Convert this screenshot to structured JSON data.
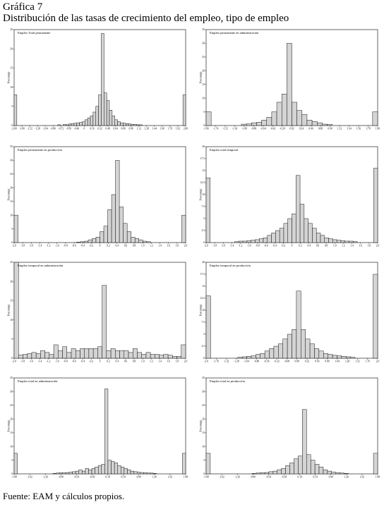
{
  "figure": {
    "label": "Gráfica 7",
    "title": "Distribución de las tasas de crecimiento del empleo, tipo de empleo",
    "source": "Fuente: EAM y cálculos propios."
  },
  "colors": {
    "bar_fill": "#d4d4d4",
    "bar_stroke": "#000000",
    "axis": "#000000"
  },
  "chart_data": [
    {
      "type": "bar",
      "title": "Empleo Total permanente",
      "ylabel": "Porcentaje",
      "ylim": [
        0,
        25
      ],
      "y_ticks": [
        0,
        5,
        10,
        15,
        20,
        25
      ],
      "x_tick_labels": [
        "-2.00",
        "-1.80",
        "-1.52",
        "-1.28",
        "-1.04",
        "-0.80",
        "-0.72",
        "-0.56",
        "-0.40",
        "0",
        "0.16",
        "0.32",
        "0.48",
        "0.64",
        "0.80",
        "0.96",
        "1.12",
        "1.28",
        "1.44",
        "1.60",
        "1.76",
        "1.92",
        "2.00"
      ],
      "values": [
        8,
        0,
        0,
        0,
        0,
        0,
        0,
        0,
        0,
        0,
        0,
        0,
        0,
        0,
        0,
        0,
        0.2,
        0,
        0.3,
        0.2,
        0.4,
        0.5,
        0.6,
        0.7,
        0.8,
        1.0,
        1.5,
        2.0,
        2.5,
        3.5,
        5.0,
        8.0,
        24.0,
        8.5,
        6.5,
        4.0,
        2.5,
        1.5,
        1.0,
        0.7,
        0.6,
        0.5,
        0.4,
        0.3,
        0.3,
        0.2,
        0.2,
        0,
        0,
        0,
        0,
        0,
        0,
        0,
        0,
        0,
        0,
        0,
        0,
        0,
        0,
        0,
        8
      ]
    },
    {
      "type": "bar",
      "title": "Empleo permanente en administración",
      "ylabel": "Porcentaje",
      "ylim": [
        0,
        35
      ],
      "y_ticks": [
        0,
        5,
        10,
        15,
        20,
        25,
        30,
        35
      ],
      "x_tick_labels": [
        "-1.96",
        "-1.74",
        "-1.52",
        "-1.30",
        "-1.08",
        "-0.86",
        "-0.64",
        "-0.42",
        "-0.20",
        "0.02",
        "0.24",
        "0.46",
        "0.68",
        "0.90",
        "1.12",
        "1.34",
        "1.56",
        "1.78",
        "1.96"
      ],
      "values": [
        5,
        0,
        0,
        0,
        0,
        0,
        0,
        0.5,
        0.6,
        1.0,
        1.2,
        2.0,
        3.0,
        5.0,
        8.5,
        11.5,
        30.0,
        8.5,
        5.5,
        4.0,
        2.0,
        1.5,
        1.0,
        0.5,
        0.4,
        0,
        0,
        0,
        0,
        0,
        0,
        0,
        0,
        5
      ]
    },
    {
      "type": "bar",
      "title": "Empleo permanente en producción",
      "ylabel": "Porcentaje",
      "ylim": [
        0,
        35
      ],
      "y_ticks": [
        0,
        5,
        10,
        15,
        20,
        25,
        30,
        35
      ],
      "x_tick_labels": [
        "-2.0",
        "-1.8",
        "-1.6",
        "-1.4",
        "-1.2",
        "-1.0",
        "-0.8",
        "-0.6",
        "-0.4",
        "-0.2",
        "0",
        "0.2",
        "0.4",
        "0.6",
        "0.8",
        "1.0",
        "1.2",
        "1.4",
        "1.6",
        "1.8",
        "2.0"
      ],
      "values": [
        10,
        0,
        0,
        0,
        0,
        0,
        0,
        0,
        0,
        0,
        0,
        0,
        0,
        0,
        0,
        0,
        0.2,
        0.3,
        0.5,
        1.0,
        1.5,
        2.0,
        4.0,
        6.0,
        12.0,
        17.5,
        30.0,
        13.0,
        7.0,
        4.0,
        2.0,
        1.5,
        1.0,
        0.5,
        0.3,
        0,
        0,
        0,
        0,
        0,
        0,
        0,
        0,
        10
      ]
    },
    {
      "type": "bar",
      "title": "Empleo total temporal",
      "ylabel": "Porcentaje",
      "ylim": [
        0,
        20
      ],
      "y_ticks": [
        0,
        2.5,
        5,
        7.5,
        10,
        12.5,
        15,
        17.5,
        20
      ],
      "x_tick_labels": [
        "-2.0",
        "-1.8",
        "-1.6",
        "-1.4",
        "-1.2",
        "-1.0",
        "-0.8",
        "-0.6",
        "-0.4",
        "-0.2",
        "0",
        "0.2",
        "0.4",
        "0.6",
        "0.8",
        "1.0",
        "1.2",
        "1.4",
        "1.6",
        "1.8",
        "2.0"
      ],
      "values": [
        13.5,
        0,
        0,
        0,
        0,
        0,
        0,
        0.2,
        0.3,
        0.3,
        0.4,
        0.5,
        0.6,
        0.8,
        1.0,
        1.5,
        2.0,
        2.5,
        3.0,
        4.0,
        5.0,
        6.0,
        14.0,
        8.0,
        5.0,
        4.0,
        3.0,
        2.0,
        1.5,
        1.0,
        0.8,
        0.6,
        0.5,
        0.4,
        0.3,
        0.3,
        0.2,
        0,
        0,
        0,
        0,
        15.5
      ]
    },
    {
      "type": "bar",
      "title": "Empleo temporal en administración",
      "ylabel": "Porcentaje",
      "ylim": [
        0,
        25
      ],
      "y_ticks": [
        0,
        5,
        10,
        15,
        20,
        25
      ],
      "x_tick_labels": [
        "-2.0",
        "-1.8",
        "-1.6",
        "-1.4",
        "-1.2",
        "-1.0",
        "-0.8",
        "-0.6",
        "-0.4",
        "-0.2",
        "0",
        "0.2",
        "0.4",
        "0.6",
        "0.8",
        "1.0",
        "1.2",
        "1.4",
        "1.6",
        "1.8",
        "2.0"
      ],
      "values": [
        25,
        0.8,
        1.0,
        1.2,
        1.5,
        1.2,
        2.0,
        1.5,
        1.0,
        3.5,
        2.0,
        3.0,
        1.5,
        2.5,
        2.0,
        2.5,
        2.5,
        2.5,
        2.5,
        3.0,
        19.0,
        2.0,
        2.5,
        2.0,
        2.0,
        2.0,
        1.5,
        2.5,
        1.5,
        1.0,
        1.5,
        1.0,
        1.0,
        0.8,
        1.0,
        0.8,
        0.5,
        0.5,
        3.5
      ]
    },
    {
      "type": "bar",
      "title": "Empleo temporal en producción",
      "ylabel": "Porcentaje",
      "ylim": [
        0,
        20
      ],
      "y_ticks": [
        0,
        2.5,
        5,
        7.5,
        10,
        12.5,
        15,
        17.5,
        20
      ],
      "x_tick_labels": [
        "-2.0",
        "-1.76",
        "-1.52",
        "-1.28",
        "-1.04",
        "-0.80",
        "-0.56",
        "-0.32",
        "-0.08",
        "0.08",
        "0.32",
        "0.56",
        "0.80",
        "1.04",
        "1.28",
        "1.52",
        "1.76",
        "2.0"
      ],
      "values": [
        13.0,
        0,
        0,
        0,
        0,
        0,
        0,
        0.2,
        0.3,
        0.4,
        0.5,
        0.8,
        1.0,
        1.5,
        2.0,
        2.5,
        3.0,
        4.0,
        5.0,
        6.0,
        14.0,
        6.0,
        4.0,
        3.0,
        2.0,
        1.5,
        1.0,
        0.8,
        0.6,
        0.5,
        0.4,
        0.3,
        0.2,
        0,
        0,
        0,
        0,
        17.5
      ]
    },
    {
      "type": "bar",
      "title": "Empleo total en administración",
      "ylabel": "Porcentaje",
      "ylim": [
        0,
        35
      ],
      "y_ticks": [
        0,
        5,
        10,
        15,
        20,
        25,
        30,
        35
      ],
      "x_tick_labels": [
        "-1.98",
        "-1.62",
        "-1.26",
        "-0.90",
        "-0.54",
        "-0.18",
        "0.18",
        "0.54",
        "0.90",
        "1.26",
        "1.62",
        "1.98"
      ],
      "values": [
        7.5,
        0,
        0,
        0,
        0,
        0,
        0,
        0,
        0,
        0,
        0,
        0,
        0.2,
        0.3,
        0.4,
        0.4,
        0.5,
        0.6,
        0.8,
        1.0,
        1.5,
        1.0,
        2.0,
        1.5,
        2.0,
        2.5,
        3.0,
        3.5,
        31.0,
        5.0,
        4.5,
        4.0,
        3.0,
        2.5,
        2.0,
        1.5,
        1.0,
        0.8,
        0.6,
        0.5,
        0.4,
        0.3,
        0.3,
        0.2,
        0,
        0,
        0,
        0,
        0,
        0,
        0,
        0,
        7.5
      ]
    },
    {
      "type": "bar",
      "title": "Empleo total en producción",
      "ylabel": "Porcentaje",
      "ylim": [
        0,
        35
      ],
      "y_ticks": [
        0,
        5,
        10,
        15,
        20,
        25,
        30,
        35
      ],
      "x_tick_labels": [
        "-1.98",
        "-1.62",
        "-1.26",
        "-0.90",
        "-0.54",
        "-0.18",
        "0.18",
        "0.54",
        "0.90",
        "1.26",
        "1.62",
        "1.98"
      ],
      "values": [
        7.5,
        0,
        0,
        0,
        0,
        0,
        0,
        0,
        0,
        0,
        0,
        0.2,
        0.3,
        0.4,
        0.5,
        0.8,
        1.0,
        1.5,
        2.0,
        3.0,
        4.0,
        5.5,
        6.5,
        23.5,
        7.0,
        5.0,
        3.5,
        2.5,
        1.5,
        1.0,
        0.6,
        0.4,
        0.3,
        0.2,
        0,
        0,
        0,
        0,
        0,
        0,
        7.5
      ]
    }
  ]
}
